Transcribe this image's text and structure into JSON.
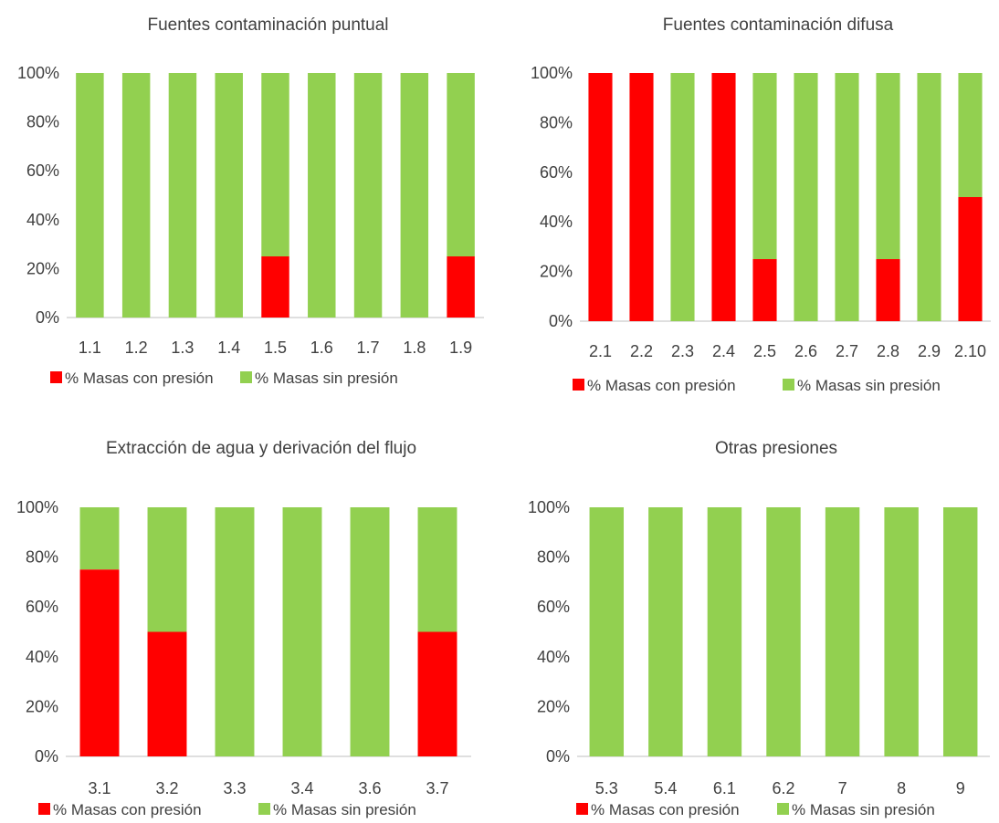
{
  "colors": {
    "con": "#ff0000",
    "sin": "#92d050"
  },
  "legend": {
    "con": "% Masas con presión",
    "sin": "% Masas sin  presión"
  },
  "y_ticks": [
    "0%",
    "20%",
    "40%",
    "60%",
    "80%",
    "100%"
  ],
  "chart_data": [
    {
      "type": "bar",
      "stacked": true,
      "title": "Fuentes contaminación puntual",
      "categories": [
        "1.1",
        "1.2",
        "1.3",
        "1.4",
        "1.5",
        "1.6",
        "1.7",
        "1.8",
        "1.9"
      ],
      "series": [
        {
          "name": "% Masas con presión",
          "values": [
            0,
            0,
            0,
            0,
            25,
            0,
            0,
            0,
            25
          ]
        },
        {
          "name": "% Masas sin  presión",
          "values": [
            100,
            100,
            100,
            100,
            75,
            100,
            100,
            100,
            75
          ]
        }
      ],
      "ylim": [
        0,
        100
      ],
      "legend_position": "bottom"
    },
    {
      "type": "bar",
      "stacked": true,
      "title": "Fuentes contaminación difusa",
      "categories": [
        "2.1",
        "2.2",
        "2.3",
        "2.4",
        "2.5",
        "2.6",
        "2.7",
        "2.8",
        "2.9",
        "2.10"
      ],
      "series": [
        {
          "name": "% Masas con presión",
          "values": [
            100,
            100,
            0,
            100,
            25,
            0,
            0,
            25,
            0,
            50
          ]
        },
        {
          "name": "% Masas sin  presión",
          "values": [
            0,
            0,
            100,
            0,
            75,
            100,
            100,
            75,
            100,
            50
          ]
        }
      ],
      "ylim": [
        0,
        100
      ],
      "legend_position": "bottom"
    },
    {
      "type": "bar",
      "stacked": true,
      "title": "Extracción de agua y derivación del flujo",
      "categories": [
        "3.1",
        "3.2",
        "3.3",
        "3.4",
        "3.6",
        "3.7"
      ],
      "series": [
        {
          "name": "% Masas con presión",
          "values": [
            75,
            50,
            0,
            0,
            0,
            50
          ]
        },
        {
          "name": "% Masas sin  presión",
          "values": [
            25,
            50,
            100,
            100,
            100,
            50
          ]
        }
      ],
      "ylim": [
        0,
        100
      ],
      "legend_position": "bottom"
    },
    {
      "type": "bar",
      "stacked": true,
      "title": "Otras presiones",
      "categories": [
        "5.3",
        "5.4",
        "6.1",
        "6.2",
        "7",
        "8",
        "9"
      ],
      "series": [
        {
          "name": "% Masas con presión",
          "values": [
            0,
            0,
            0,
            0,
            0,
            0,
            0
          ]
        },
        {
          "name": "% Masas sin  presión",
          "values": [
            100,
            100,
            100,
            100,
            100,
            100,
            100
          ]
        }
      ],
      "ylim": [
        0,
        100
      ],
      "legend_position": "bottom"
    }
  ]
}
